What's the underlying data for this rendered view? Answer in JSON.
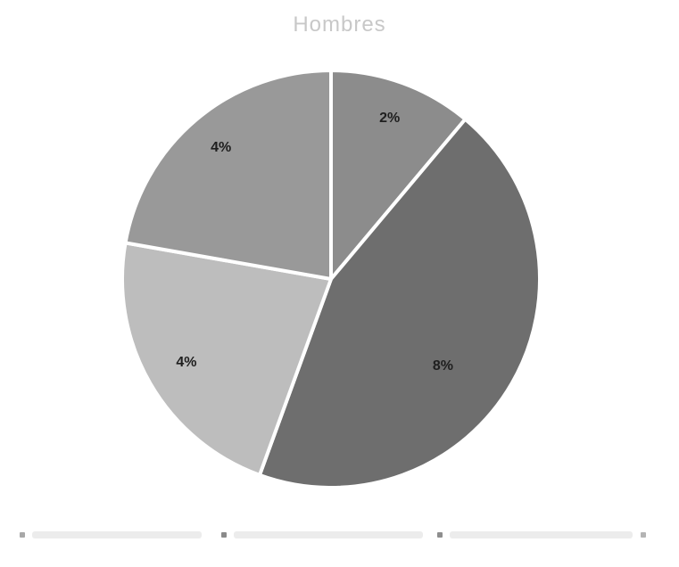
{
  "chart_data": {
    "type": "pie",
    "title": "Hombres",
    "slices": [
      {
        "label_text": "2%",
        "value": 2,
        "color": "#8c8c8c"
      },
      {
        "label_text": "8%",
        "value": 8,
        "color": "#6e6e6e"
      },
      {
        "label_text": "4%",
        "value": 4,
        "color": "#bdbdbd"
      },
      {
        "label_text": "4%",
        "value": 4,
        "color": "#999999"
      }
    ],
    "legend_placement": "bottom",
    "legend_colors": [
      "#a8a8a8",
      "#8a8a8a",
      "#8e8e8e",
      "#b4b4b4"
    ]
  }
}
